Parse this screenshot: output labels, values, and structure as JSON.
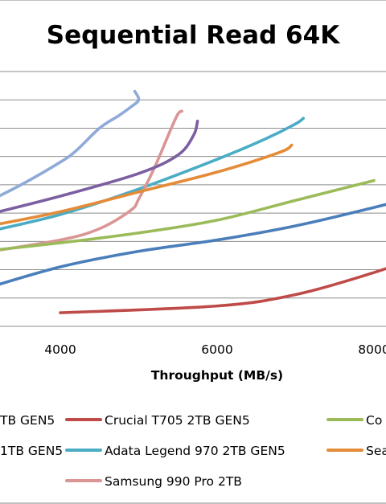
{
  "chart_data": {
    "type": "line",
    "title": "Sequential Read 64K",
    "xlabel": "Throughput (MB/s)",
    "ylabel": "",
    "xlim": [
      0,
      10000
    ],
    "x_ticks": [
      "4000",
      "6000",
      "8000"
    ],
    "y_gridlines": 9,
    "grid": true,
    "legend": "bottom",
    "series": [
      {
        "name": "Crucial T705 2TB GEN5",
        "color": "#be4b48",
        "points": [
          [
            4000,
            0.48
          ],
          [
            6000,
            0.72
          ],
          [
            7000,
            1.12
          ],
          [
            8000,
            1.9
          ],
          [
            8500,
            2.4
          ]
        ]
      },
      {
        "name": "Adata Legend 970 2TB GEN5",
        "color": "#4aacc5",
        "points": [
          [
            3000,
            3.3
          ],
          [
            4000,
            3.95
          ],
          [
            5000,
            4.85
          ],
          [
            6000,
            5.9
          ],
          [
            6600,
            6.6
          ],
          [
            7000,
            7.15
          ],
          [
            7100,
            7.35
          ]
        ]
      },
      {
        "name": "Samsung 990 Pro 2TB",
        "color": "#d99694",
        "points": [
          [
            3000,
            2.6
          ],
          [
            4000,
            3.05
          ],
          [
            4500,
            3.45
          ],
          [
            4900,
            4.1
          ],
          [
            5000,
            4.5
          ],
          [
            5200,
            5.6
          ],
          [
            5400,
            6.9
          ],
          [
            5500,
            7.5
          ],
          [
            5550,
            7.6
          ]
        ]
      },
      {
        "name": "",
        "color": "#8faad8",
        "points": [
          [
            3000,
            4.3
          ],
          [
            3500,
            5.0
          ],
          [
            4000,
            5.8
          ],
          [
            4200,
            6.2
          ],
          [
            4500,
            7.0
          ],
          [
            4750,
            7.45
          ],
          [
            4900,
            7.75
          ],
          [
            5000,
            8.0
          ],
          [
            4950,
            8.3
          ]
        ]
      },
      {
        "name": "",
        "color": "#7c5fa0",
        "points": [
          [
            3000,
            3.9
          ],
          [
            4000,
            4.6
          ],
          [
            5000,
            5.4
          ],
          [
            5500,
            6.05
          ],
          [
            5700,
            6.75
          ],
          [
            5750,
            7.25
          ]
        ]
      },
      {
        "name": "",
        "color": "#e48b38",
        "points": [
          [
            3000,
            3.5
          ],
          [
            4000,
            4.05
          ],
          [
            5000,
            4.75
          ],
          [
            6000,
            5.45
          ],
          [
            6800,
            6.15
          ],
          [
            6950,
            6.4
          ]
        ]
      },
      {
        "name": "",
        "color": "#9bbb59",
        "points": [
          [
            3000,
            2.65
          ],
          [
            4000,
            2.95
          ],
          [
            5000,
            3.3
          ],
          [
            6000,
            3.75
          ],
          [
            7000,
            4.45
          ],
          [
            8000,
            5.15
          ]
        ]
      },
      {
        "name": "",
        "color": "#4a7ebb",
        "points": [
          [
            3000,
            1.3
          ],
          [
            4000,
            2.1
          ],
          [
            5000,
            2.65
          ],
          [
            6000,
            3.05
          ],
          [
            7000,
            3.55
          ],
          [
            8000,
            4.2
          ],
          [
            8500,
            4.55
          ]
        ]
      }
    ]
  },
  "legend_items": [
    {
      "text": "TB GEN5",
      "color": "#4a7ebb",
      "col": 0,
      "row": 0,
      "marker": false
    },
    {
      "text": "Crucial T705 2TB GEN5",
      "color": "#be4b48",
      "col": 1,
      "row": 0,
      "marker": true
    },
    {
      "text": "Co",
      "color": "#9bbb59",
      "col": 2,
      "row": 0,
      "marker": true
    },
    {
      "text": "1TB GEN5",
      "color": "#7c5fa0",
      "col": 0,
      "row": 1,
      "marker": false
    },
    {
      "text": "Adata Legend 970 2TB GEN5",
      "color": "#4aacc5",
      "col": 1,
      "row": 1,
      "marker": true
    },
    {
      "text": "Sea",
      "color": "#e48b38",
      "col": 2,
      "row": 1,
      "marker": true
    },
    {
      "text": "Samsung 990 Pro 2TB",
      "color": "#d99694",
      "col": 1,
      "row": 2,
      "marker": true
    }
  ]
}
